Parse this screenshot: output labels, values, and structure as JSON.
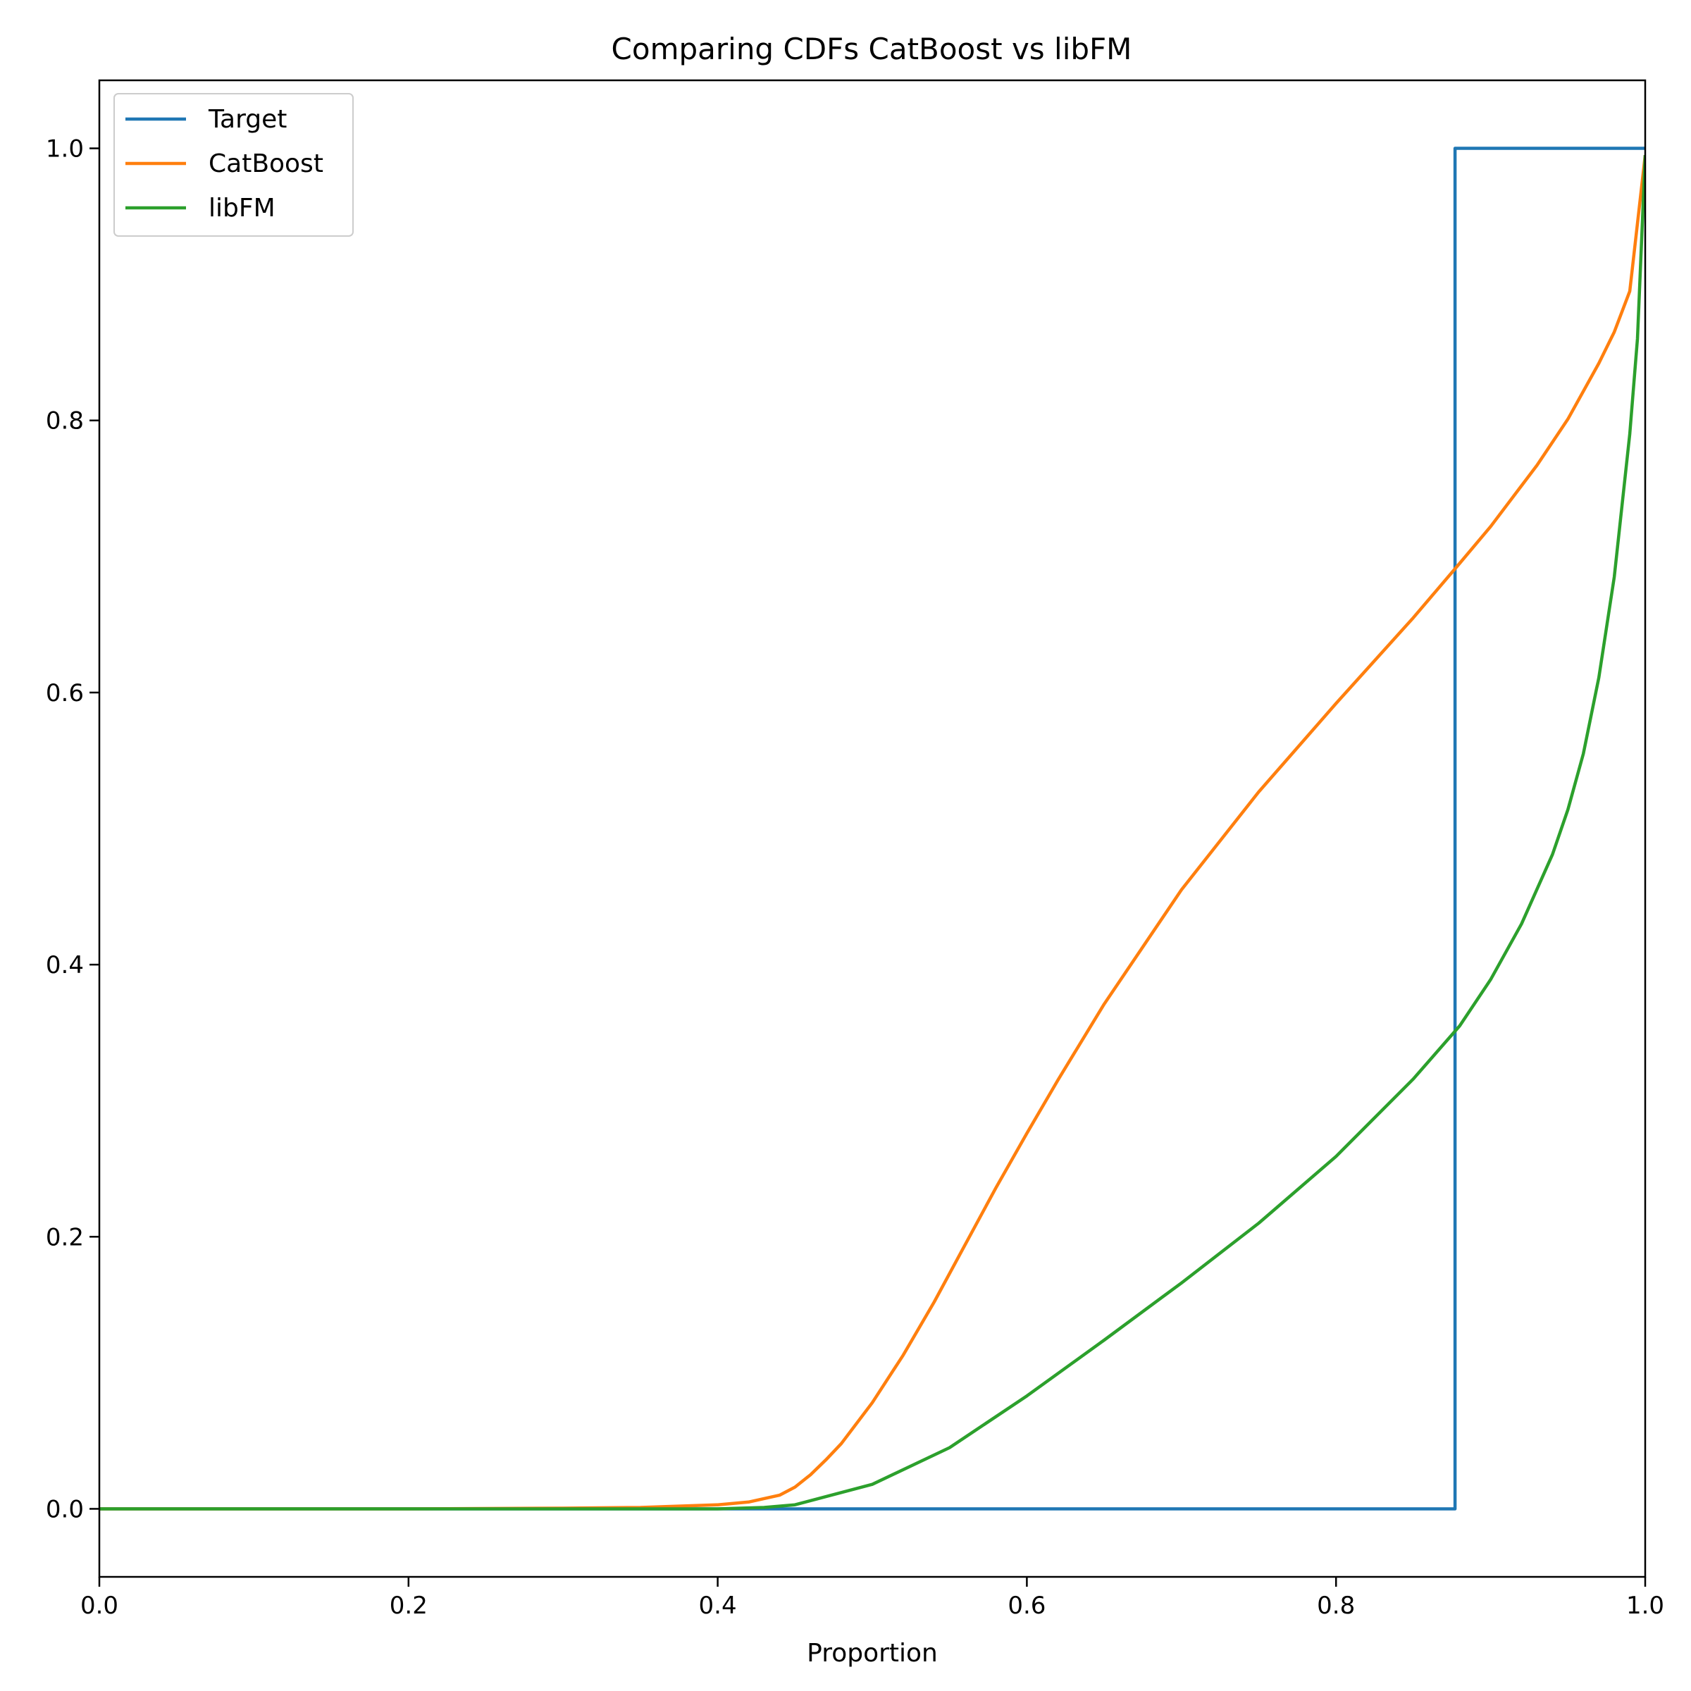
{
  "chart_data": {
    "type": "line",
    "title": "Comparing CDFs CatBoost vs libFM",
    "xlabel": "Proportion",
    "ylabel": "",
    "xlim": [
      0.0,
      1.0
    ],
    "ylim": [
      -0.05,
      1.05
    ],
    "xticks": [
      "0.0",
      "0.2",
      "0.4",
      "0.6",
      "0.8",
      "1.0"
    ],
    "yticks": [
      "0.0",
      "0.2",
      "0.4",
      "0.6",
      "0.8",
      "1.0"
    ],
    "grid": false,
    "legend_position": "top-left",
    "series": [
      {
        "name": "Target",
        "color": "#1f77b4",
        "x": [
          0.0,
          0.877,
          0.877,
          1.0
        ],
        "y": [
          0.0,
          0.0,
          1.0,
          1.0
        ]
      },
      {
        "name": "CatBoost",
        "color": "#ff7f0e",
        "x": [
          0.0,
          0.1,
          0.2,
          0.3,
          0.35,
          0.4,
          0.42,
          0.44,
          0.45,
          0.46,
          0.47,
          0.48,
          0.5,
          0.52,
          0.54,
          0.56,
          0.58,
          0.6,
          0.62,
          0.65,
          0.7,
          0.75,
          0.8,
          0.85,
          0.88,
          0.9,
          0.93,
          0.95,
          0.97,
          0.98,
          0.99,
          1.0
        ],
        "y": [
          0.0,
          0.0,
          0.0,
          0.0005,
          0.001,
          0.003,
          0.005,
          0.01,
          0.016,
          0.025,
          0.036,
          0.048,
          0.078,
          0.113,
          0.152,
          0.194,
          0.236,
          0.276,
          0.315,
          0.371,
          0.455,
          0.527,
          0.592,
          0.655,
          0.695,
          0.722,
          0.767,
          0.801,
          0.842,
          0.865,
          0.895,
          0.995
        ]
      },
      {
        "name": "libFM",
        "color": "#2ca02c",
        "x": [
          0.0,
          0.1,
          0.2,
          0.3,
          0.4,
          0.43,
          0.45,
          0.5,
          0.55,
          0.6,
          0.65,
          0.7,
          0.75,
          0.8,
          0.85,
          0.88,
          0.9,
          0.92,
          0.94,
          0.95,
          0.96,
          0.97,
          0.98,
          0.99,
          0.995,
          1.0
        ],
        "y": [
          0.0,
          0.0,
          0.0,
          0.0,
          0.0,
          0.001,
          0.003,
          0.018,
          0.045,
          0.083,
          0.124,
          0.166,
          0.21,
          0.259,
          0.316,
          0.355,
          0.389,
          0.43,
          0.481,
          0.514,
          0.555,
          0.611,
          0.685,
          0.79,
          0.86,
          0.995
        ]
      }
    ]
  }
}
